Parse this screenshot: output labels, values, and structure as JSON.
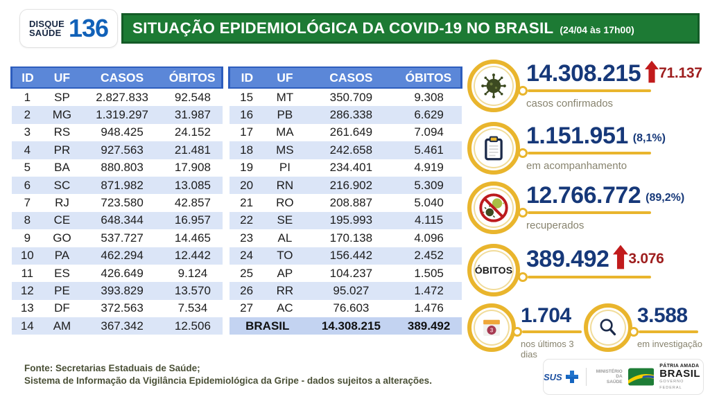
{
  "header": {
    "logo_line1": "DISQUE",
    "logo_line2": "SAÚDE",
    "logo_number": "136",
    "title": "SITUAÇÃO EPIDEMIOLÓGICA DA COVID-19 NO BRASIL",
    "datetime": "(24/04 às 17h00)"
  },
  "chart_data": {
    "type": "table",
    "title": "SITUAÇÃO EPIDEMIOLÓGICA DA COVID-19 NO BRASIL (24/04 às 17h00)",
    "columns": [
      "ID",
      "UF",
      "CASOS",
      "ÓBITOS"
    ],
    "rows_left": [
      {
        "id": "1",
        "uf": "SP",
        "casos": "2.827.833",
        "obitos": "92.548"
      },
      {
        "id": "2",
        "uf": "MG",
        "casos": "1.319.297",
        "obitos": "31.987"
      },
      {
        "id": "3",
        "uf": "RS",
        "casos": "948.425",
        "obitos": "24.152"
      },
      {
        "id": "4",
        "uf": "PR",
        "casos": "927.563",
        "obitos": "21.481"
      },
      {
        "id": "5",
        "uf": "BA",
        "casos": "880.803",
        "obitos": "17.908"
      },
      {
        "id": "6",
        "uf": "SC",
        "casos": "871.982",
        "obitos": "13.085"
      },
      {
        "id": "7",
        "uf": "RJ",
        "casos": "723.580",
        "obitos": "42.857"
      },
      {
        "id": "8",
        "uf": "CE",
        "casos": "648.344",
        "obitos": "16.957"
      },
      {
        "id": "9",
        "uf": "GO",
        "casos": "537.727",
        "obitos": "14.465"
      },
      {
        "id": "10",
        "uf": "PA",
        "casos": "462.294",
        "obitos": "12.442"
      },
      {
        "id": "11",
        "uf": "ES",
        "casos": "426.649",
        "obitos": "9.124"
      },
      {
        "id": "12",
        "uf": "PE",
        "casos": "393.829",
        "obitos": "13.570"
      },
      {
        "id": "13",
        "uf": "DF",
        "casos": "372.563",
        "obitos": "7.534"
      },
      {
        "id": "14",
        "uf": "AM",
        "casos": "367.342",
        "obitos": "12.506"
      }
    ],
    "rows_right": [
      {
        "id": "15",
        "uf": "MT",
        "casos": "350.709",
        "obitos": "9.308"
      },
      {
        "id": "16",
        "uf": "PB",
        "casos": "286.338",
        "obitos": "6.629"
      },
      {
        "id": "17",
        "uf": "MA",
        "casos": "261.649",
        "obitos": "7.094"
      },
      {
        "id": "18",
        "uf": "MS",
        "casos": "242.658",
        "obitos": "5.461"
      },
      {
        "id": "19",
        "uf": "PI",
        "casos": "234.401",
        "obitos": "4.919"
      },
      {
        "id": "20",
        "uf": "RN",
        "casos": "216.902",
        "obitos": "5.309"
      },
      {
        "id": "21",
        "uf": "RO",
        "casos": "208.887",
        "obitos": "5.040"
      },
      {
        "id": "22",
        "uf": "SE",
        "casos": "195.993",
        "obitos": "4.115"
      },
      {
        "id": "23",
        "uf": "AL",
        "casos": "170.138",
        "obitos": "4.096"
      },
      {
        "id": "24",
        "uf": "TO",
        "casos": "156.442",
        "obitos": "2.452"
      },
      {
        "id": "25",
        "uf": "AP",
        "casos": "104.237",
        "obitos": "1.505"
      },
      {
        "id": "26",
        "uf": "RR",
        "casos": "95.027",
        "obitos": "1.472"
      },
      {
        "id": "27",
        "uf": "AC",
        "casos": "76.603",
        "obitos": "1.476"
      }
    ],
    "total_row": {
      "label": "BRASIL",
      "casos": "14.308.215",
      "obitos": "389.492"
    }
  },
  "stats": [
    {
      "icon": "virus-icon",
      "value": "14.308.215",
      "delta": "71.137",
      "label": "casos confirmados"
    },
    {
      "icon": "clipboard-icon",
      "value": "1.151.951",
      "percent": "(8,1%)",
      "label": "em acompanhamento"
    },
    {
      "icon": "no-virus-icon",
      "value": "12.766.772",
      "percent": "(89,2%)",
      "label": "recuperados"
    },
    {
      "icon": "obitos-badge",
      "badge": "ÓBITOS",
      "value": "389.492",
      "delta": "3.076"
    }
  ],
  "mini_stats": [
    {
      "icon": "calendar-icon",
      "badge": "3",
      "value": "1.704",
      "label": "nos últimos 3 dias"
    },
    {
      "icon": "magnifier-icon",
      "value": "3.588",
      "label": "em investigação"
    }
  ],
  "footer": {
    "source_line1": "Fonte: Secretarias Estaduais de Saúde;",
    "source_line2": "Sistema de Informação da Vigilância Epidemiológica da Gripe - dados sujeitos a alterações.",
    "logos": {
      "sus": "SUS",
      "ministerio_line1": "MINISTÉRIO DA",
      "ministerio_line2": "SAÚDE",
      "patria_line1": "PÁTRIA AMADA",
      "patria_line2": "BRASIL",
      "governo": "GOVERNO FEDERAL"
    }
  },
  "colors": {
    "banner_green": "#1d7a34",
    "banner_border": "#145b27",
    "table_header_blue": "#5b87d8",
    "row_alt_blue": "#dbe5f7",
    "total_row_blue": "#c3d3f1",
    "number_navy": "#163879",
    "delta_red": "#9e1e1e",
    "arrow_red": "#c11b1c",
    "accent_yellow": "#e9b52d"
  }
}
